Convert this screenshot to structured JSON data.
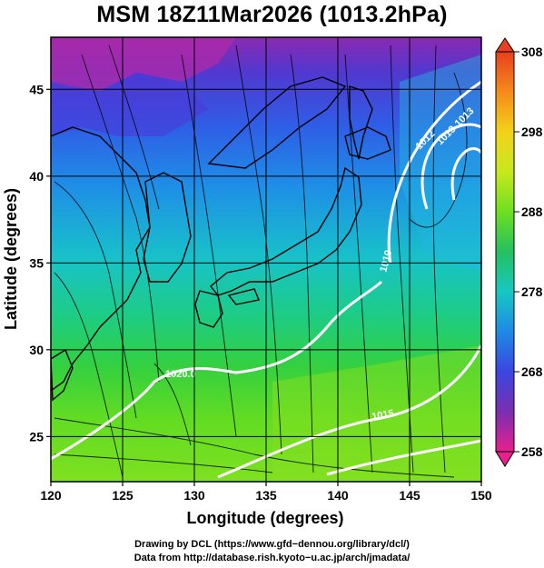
{
  "title": "MSM 18Z11Mar2026 (1013.2hPa)",
  "map": {
    "xlabel": "Longitude (degrees)",
    "ylabel": "Latitude  (degrees)",
    "lon_range": [
      120,
      150
    ],
    "lat_range": [
      22.4,
      48
    ],
    "lon_ticks": [
      "120",
      "125",
      "130",
      "135",
      "140",
      "145",
      "150"
    ],
    "lat_ticks": [
      "25",
      "30",
      "35",
      "40",
      "45"
    ],
    "grid": true,
    "contour_labels": [
      "1020.0",
      "1010",
      "1015",
      "1012",
      "1013",
      "1013"
    ]
  },
  "colorbar": {
    "ticks": [
      "308",
      "298",
      "288",
      "278",
      "268",
      "258"
    ],
    "range": [
      258,
      308
    ],
    "colors": [
      "#e8208c",
      "#7a2fb0",
      "#3a46e0",
      "#1e8ae6",
      "#16c8c0",
      "#26c060",
      "#6ce020",
      "#c8e81e",
      "#f2d21a",
      "#f58a1a",
      "#e84020"
    ]
  },
  "credits": [
    "Drawing by DCL (https://www.gfd−dennou.org/library/dcl/)",
    "Data from http://database.rish.kyoto−u.ac.jp/arch/jmadata/"
  ]
}
